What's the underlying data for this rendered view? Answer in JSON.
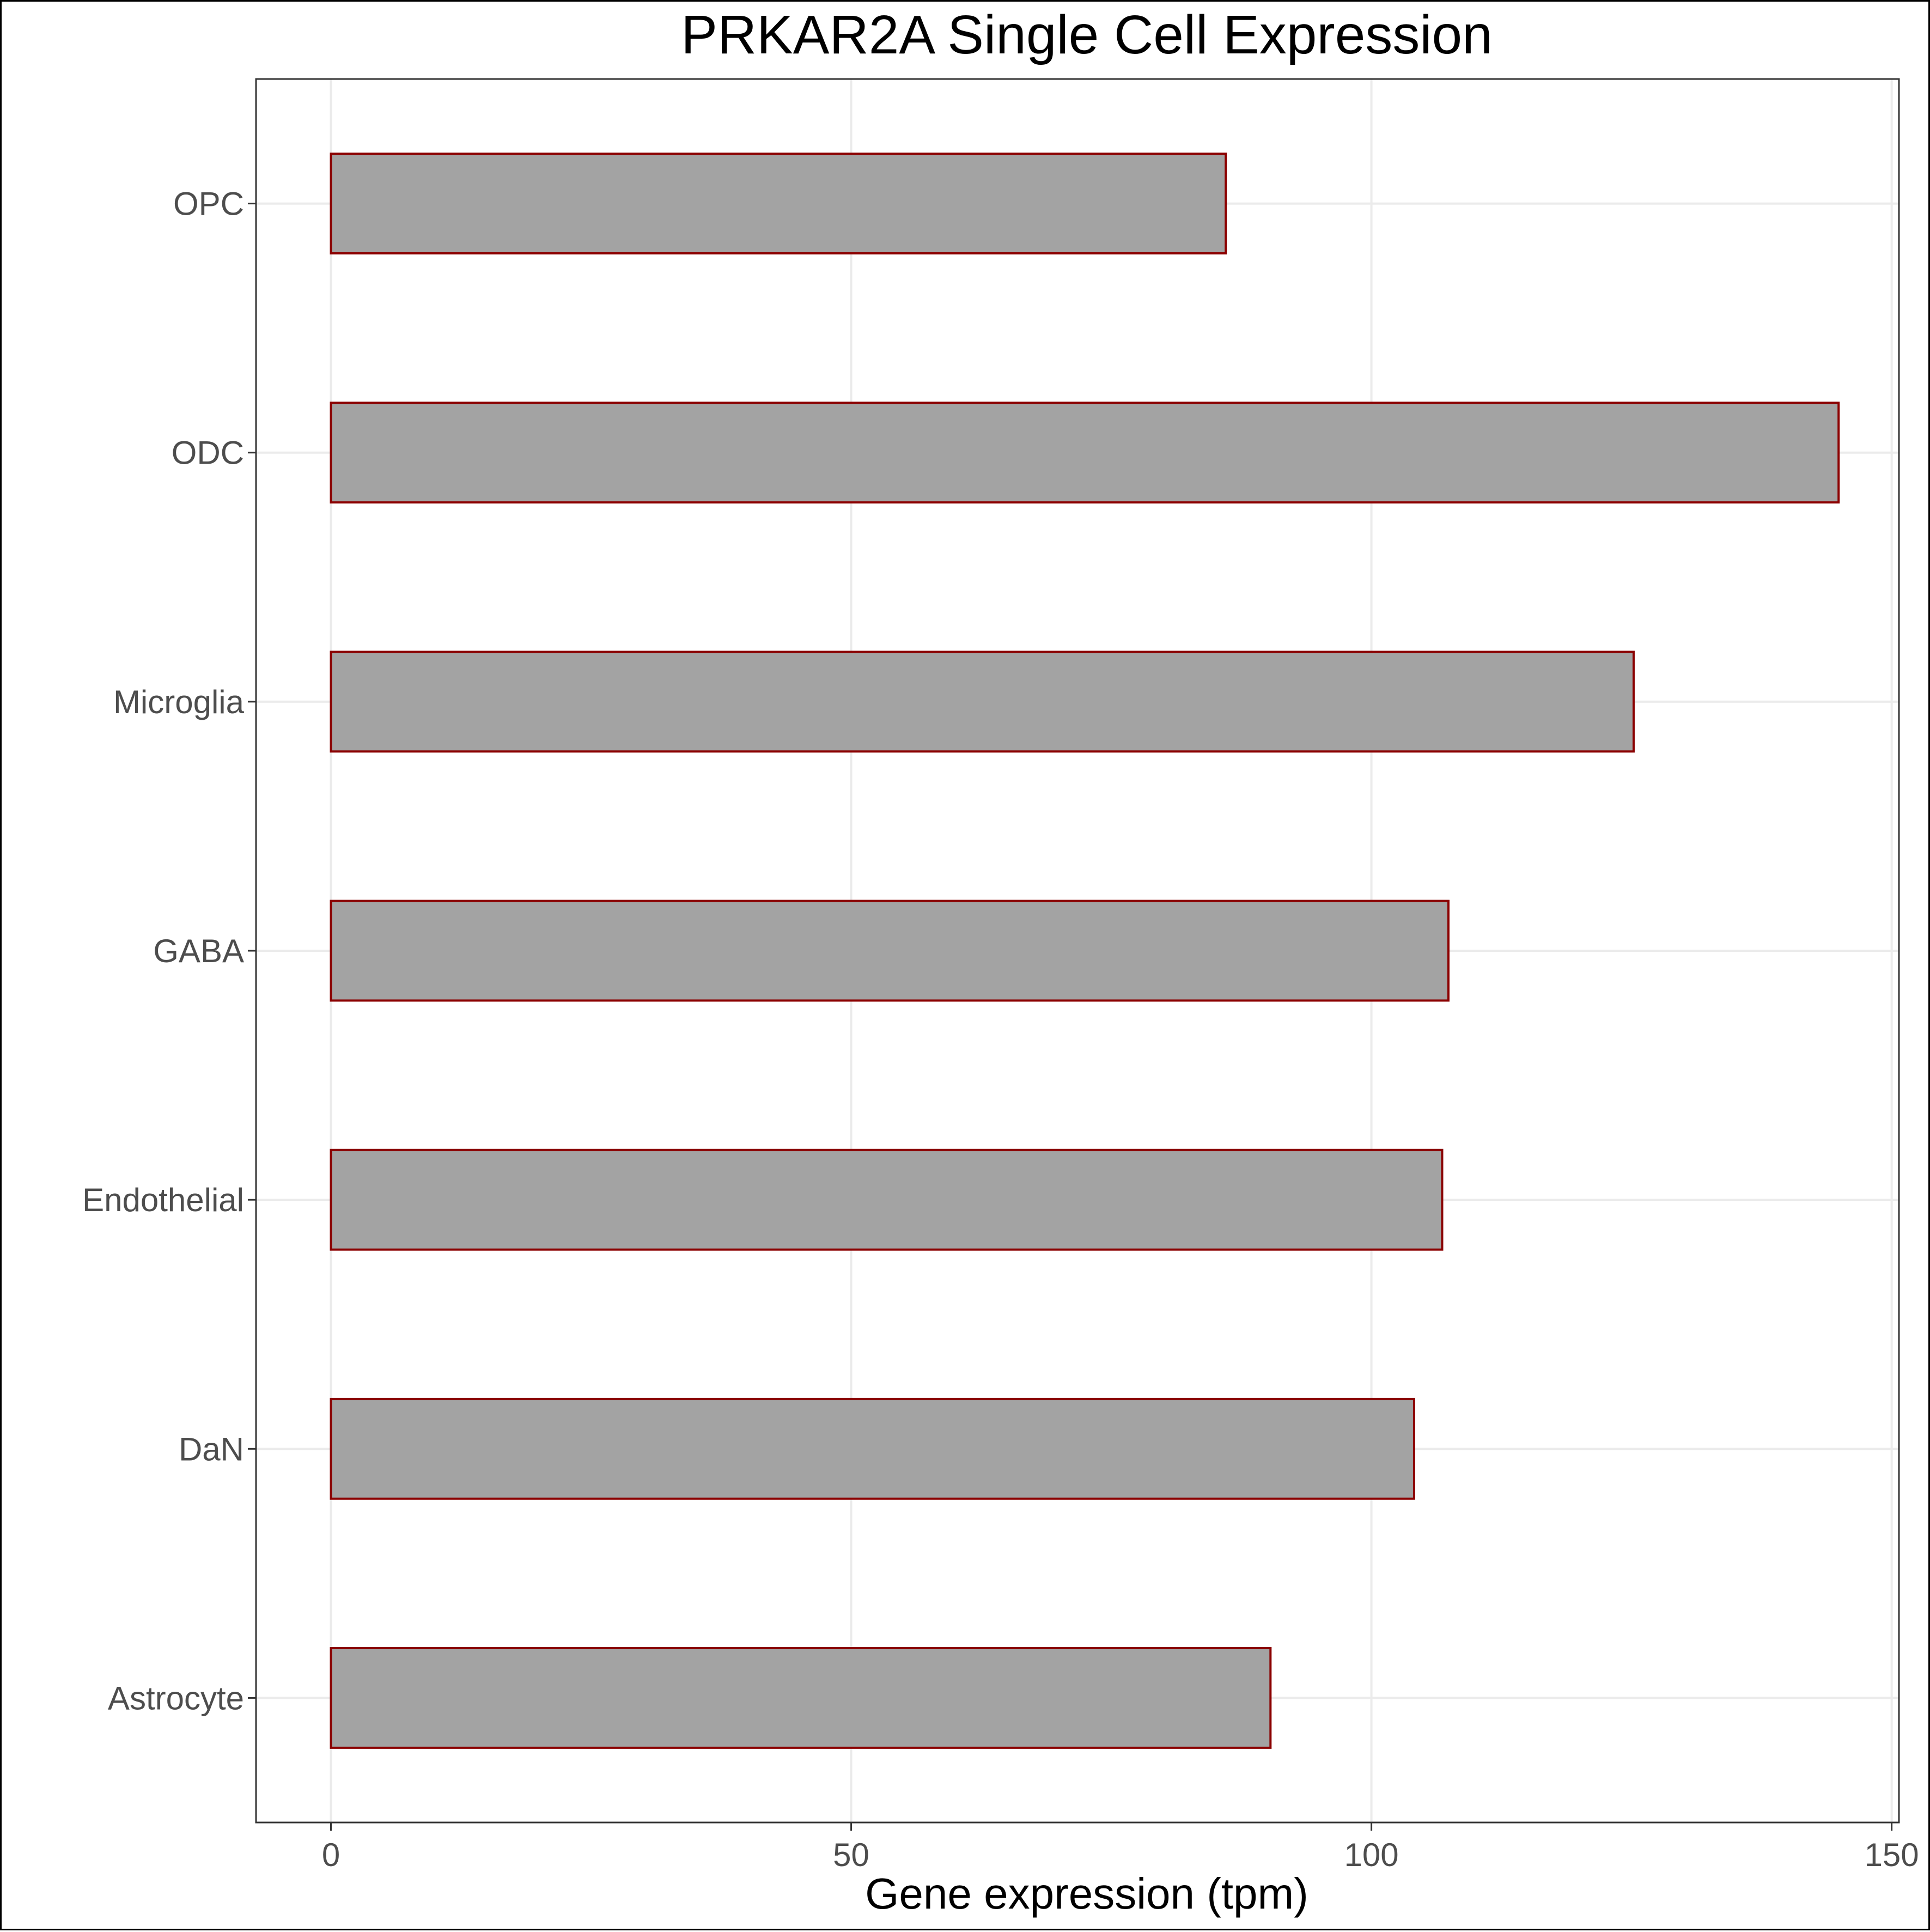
{
  "chart_data": {
    "type": "bar",
    "orientation": "horizontal",
    "title": "PRKAR2A Single Cell Expression",
    "xlabel": "Gene expression (tpm)",
    "ylabel": "",
    "categories": [
      "Astrocyte",
      "DaN",
      "Endothelial",
      "GABA",
      "Microglia",
      "ODC",
      "OPC"
    ],
    "values": [
      90.3,
      104.1,
      106.8,
      107.4,
      125.2,
      144.9,
      86.0
    ],
    "xlim": [
      -7.2,
      150.7
    ],
    "xticks": [
      0,
      50,
      100,
      150
    ],
    "xtick_labels": [
      "0",
      "50",
      "100",
      "150"
    ],
    "grid": true,
    "colors": {
      "bar_fill": "#a3a3a3",
      "bar_border": "#8b0000",
      "grid": "#ebebeb",
      "panel_border": "#333333"
    }
  }
}
